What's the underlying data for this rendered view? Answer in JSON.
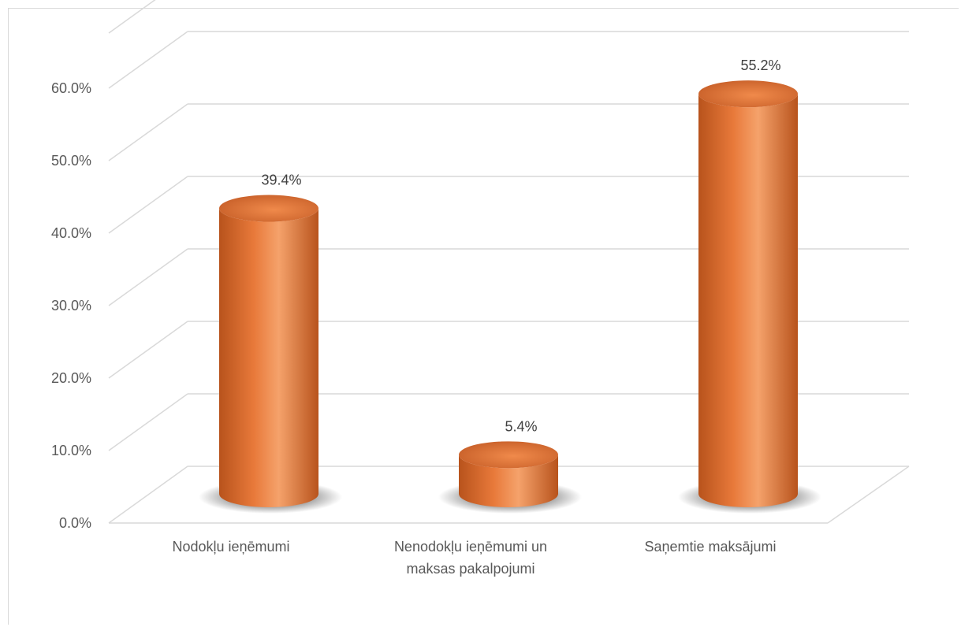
{
  "chart_data": {
    "type": "bar",
    "style": "3d-cylinder",
    "categories": [
      [
        "Nodokļu ieņēmumi"
      ],
      [
        "Nenodokļu ieņēmumi un",
        "maksas pakalpojumi"
      ],
      [
        "Saņemtie maksājumi"
      ]
    ],
    "values": [
      39.4,
      5.4,
      55.2
    ],
    "data_labels": [
      "39.4%",
      "5.4%",
      "55.2%"
    ],
    "y_ticks": [
      "0.0%",
      "10.0%",
      "20.0%",
      "30.0%",
      "40.0%",
      "50.0%",
      "60.0%"
    ],
    "ylim": [
      0,
      60
    ],
    "grid": true,
    "legend": "none",
    "bar_color": "#e8793a",
    "bar_highlight": "#f5a26b",
    "bar_shadow": "#b8531c",
    "gridline_color": "#d9d9d9"
  }
}
